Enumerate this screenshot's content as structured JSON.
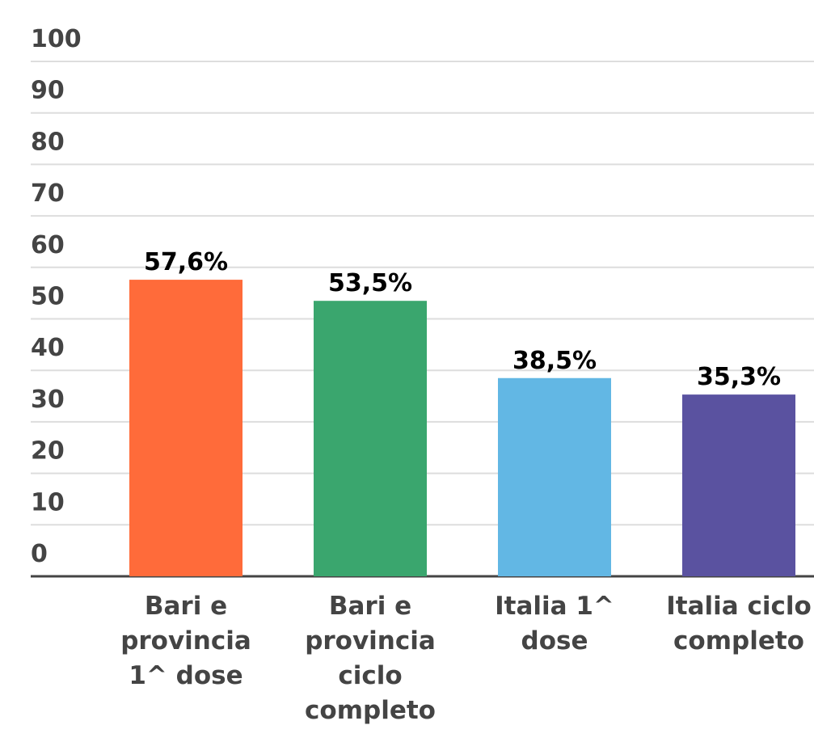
{
  "chart_data": {
    "type": "bar",
    "categories": [
      "Bari e provincia 1^ dose",
      "Bari e provincia ciclo completo",
      "Italia 1^ dose",
      "Italia ciclo completo"
    ],
    "series": [
      {
        "values": [
          57.6,
          53.5,
          38.5,
          35.3
        ],
        "value_labels": [
          "57,6%",
          "53,5%",
          "38,5%",
          "35,3%"
        ],
        "colors": [
          "#ff6b3a",
          "#3aa66e",
          "#62b7e4",
          "#5a52a0"
        ]
      }
    ],
    "ylim": [
      0,
      100
    ],
    "yticks": [
      0,
      10,
      20,
      30,
      40,
      50,
      60,
      70,
      80,
      90,
      100
    ],
    "grid": true
  }
}
